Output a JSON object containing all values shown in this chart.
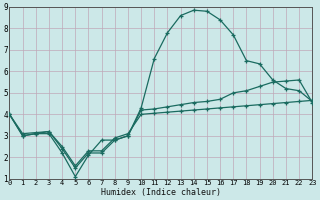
{
  "xlabel": "Humidex (Indice chaleur)",
  "xlim": [
    0,
    23
  ],
  "ylim": [
    1,
    9
  ],
  "xticks": [
    0,
    1,
    2,
    3,
    4,
    5,
    6,
    7,
    8,
    9,
    10,
    11,
    12,
    13,
    14,
    15,
    16,
    17,
    18,
    19,
    20,
    21,
    22,
    23
  ],
  "yticks": [
    1,
    2,
    3,
    4,
    5,
    6,
    7,
    8,
    9
  ],
  "bg_color": "#cce8e8",
  "grid_color": "#c0a8b8",
  "line_color": "#1a6b60",
  "line1_y": [
    4.0,
    3.0,
    3.1,
    3.1,
    2.2,
    1.1,
    2.1,
    2.8,
    2.8,
    3.0,
    4.3,
    6.6,
    7.8,
    8.6,
    8.85,
    8.8,
    8.4,
    7.7,
    6.5,
    6.35,
    5.6,
    5.2,
    5.1,
    4.6
  ],
  "line2_y": [
    4.0,
    3.0,
    3.1,
    3.2,
    2.4,
    1.5,
    2.2,
    2.2,
    2.8,
    3.0,
    4.2,
    4.25,
    4.35,
    4.45,
    4.55,
    4.6,
    4.7,
    5.0,
    5.1,
    5.3,
    5.5,
    5.55,
    5.6,
    4.55
  ],
  "line3_y": [
    4.0,
    3.1,
    3.15,
    3.2,
    2.5,
    1.6,
    2.3,
    2.3,
    2.9,
    3.1,
    4.0,
    4.05,
    4.1,
    4.15,
    4.2,
    4.25,
    4.3,
    4.35,
    4.4,
    4.45,
    4.5,
    4.55,
    4.6,
    4.65
  ]
}
